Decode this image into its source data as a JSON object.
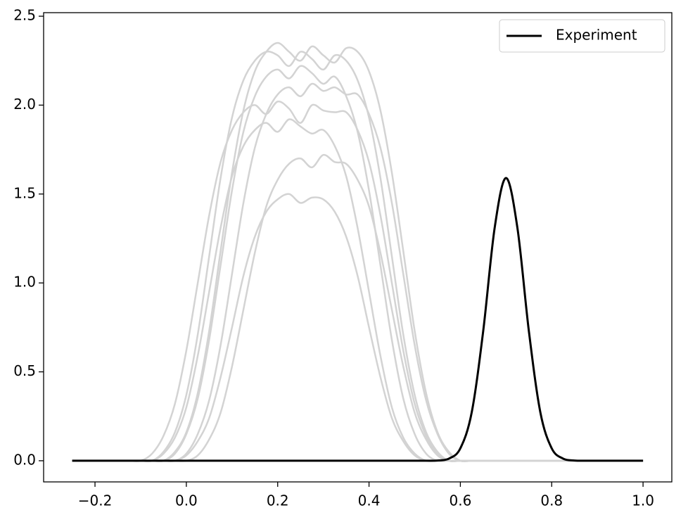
{
  "chart_data": {
    "type": "line",
    "x": [
      -0.25,
      -0.225,
      -0.2,
      -0.175,
      -0.15,
      -0.125,
      -0.1,
      -0.075,
      -0.05,
      -0.025,
      0,
      0.025,
      0.05,
      0.075,
      0.1,
      0.125,
      0.15,
      0.175,
      0.2,
      0.225,
      0.25,
      0.275,
      0.3,
      0.325,
      0.35,
      0.375,
      0.4,
      0.425,
      0.45,
      0.475,
      0.5,
      0.525,
      0.55,
      0.575,
      0.6,
      0.625,
      0.65,
      0.675,
      0.7,
      0.725,
      0.75,
      0.775,
      0.8,
      0.825,
      0.85,
      0.875,
      0.9,
      0.925,
      0.95,
      0.975,
      1.0
    ],
    "series": [
      {
        "color": "#d3d3d3",
        "values": [
          0,
          0,
          0,
          0,
          0,
          0,
          0,
          0,
          0.05,
          0.16,
          0.37,
          0.71,
          1.15,
          1.59,
          1.93,
          2.14,
          2.25,
          2.3,
          2.28,
          2.22,
          2.3,
          2.26,
          2.2,
          2.28,
          2.25,
          2.14,
          1.93,
          1.59,
          1.15,
          0.71,
          0.37,
          0.16,
          0.05,
          0,
          0,
          0,
          0,
          0,
          0,
          0,
          0,
          0,
          0,
          0,
          0,
          0,
          0,
          0,
          0,
          0,
          0
        ]
      },
      {
        "color": "#d3d3d3",
        "values": [
          0,
          0,
          0,
          0,
          0,
          0,
          0,
          0,
          0,
          0.04,
          0.15,
          0.35,
          0.68,
          1.1,
          1.52,
          1.85,
          2.05,
          2.16,
          2.2,
          2.15,
          2.22,
          2.18,
          2.12,
          2.16,
          2.05,
          1.85,
          1.52,
          1.1,
          0.68,
          0.35,
          0.15,
          0.04,
          0,
          0,
          0,
          0,
          0,
          0,
          0,
          0,
          0,
          0,
          0,
          0,
          0,
          0,
          0,
          0,
          0,
          0,
          0
        ]
      },
      {
        "color": "#d3d3d3",
        "values": [
          0,
          0,
          0,
          0,
          0,
          0,
          0,
          0.04,
          0.14,
          0.32,
          0.62,
          1.0,
          1.38,
          1.68,
          1.86,
          1.96,
          2.0,
          1.95,
          2.02,
          1.98,
          1.9,
          2.0,
          1.97,
          1.96,
          1.96,
          1.86,
          1.68,
          1.38,
          1.0,
          0.62,
          0.32,
          0.14,
          0.04,
          0,
          0,
          0,
          0,
          0,
          0,
          0,
          0,
          0,
          0,
          0,
          0,
          0,
          0,
          0,
          0,
          0,
          0
        ]
      },
      {
        "color": "#d3d3d3",
        "values": [
          0,
          0,
          0,
          0,
          0,
          0,
          0,
          0,
          0,
          0,
          0.04,
          0.15,
          0.34,
          0.65,
          1.05,
          1.45,
          1.76,
          1.95,
          2.06,
          2.1,
          2.05,
          2.12,
          2.08,
          2.1,
          2.06,
          2.06,
          1.95,
          1.76,
          1.45,
          1.05,
          0.65,
          0.34,
          0.15,
          0.04,
          0,
          0,
          0,
          0,
          0,
          0,
          0,
          0,
          0,
          0,
          0,
          0,
          0,
          0,
          0,
          0,
          0
        ]
      },
      {
        "color": "#d3d3d3",
        "values": [
          0,
          0,
          0,
          0,
          0,
          0,
          0,
          0,
          0.04,
          0.13,
          0.3,
          0.59,
          0.95,
          1.31,
          1.6,
          1.77,
          1.86,
          1.9,
          1.85,
          1.92,
          1.88,
          1.84,
          1.86,
          1.77,
          1.6,
          1.31,
          0.95,
          0.59,
          0.3,
          0.13,
          0.04,
          0,
          0,
          0,
          0,
          0,
          0,
          0,
          0,
          0,
          0,
          0,
          0,
          0,
          0,
          0,
          0,
          0,
          0,
          0,
          0
        ]
      },
      {
        "color": "#d3d3d3",
        "values": [
          0,
          0,
          0,
          0,
          0,
          0,
          0,
          0,
          0,
          0,
          0,
          0.03,
          0.12,
          0.27,
          0.53,
          0.85,
          1.17,
          1.43,
          1.58,
          1.67,
          1.7,
          1.65,
          1.72,
          1.68,
          1.67,
          1.58,
          1.43,
          1.17,
          0.85,
          0.53,
          0.27,
          0.12,
          0.03,
          0,
          0,
          0,
          0,
          0,
          0,
          0,
          0,
          0,
          0,
          0,
          0,
          0,
          0,
          0,
          0,
          0,
          0
        ]
      },
      {
        "color": "#d3d3d3",
        "values": [
          0,
          0,
          0,
          0,
          0,
          0,
          0,
          0,
          0,
          0.05,
          0.16,
          0.38,
          0.73,
          1.18,
          1.62,
          1.97,
          2.19,
          2.3,
          2.35,
          2.3,
          2.25,
          2.33,
          2.28,
          2.24,
          2.32,
          2.3,
          2.19,
          1.97,
          1.62,
          1.18,
          0.73,
          0.38,
          0.16,
          0.05,
          0,
          0,
          0,
          0,
          0,
          0,
          0,
          0,
          0,
          0,
          0,
          0,
          0,
          0,
          0,
          0,
          0
        ]
      },
      {
        "color": "#d3d3d3",
        "values": [
          0,
          0,
          0,
          0,
          0,
          0,
          0,
          0,
          0,
          0,
          0.03,
          0.11,
          0.24,
          0.47,
          0.75,
          1.04,
          1.26,
          1.4,
          1.47,
          1.5,
          1.45,
          1.48,
          1.47,
          1.4,
          1.26,
          1.04,
          0.75,
          0.47,
          0.24,
          0.11,
          0.03,
          0,
          0,
          0,
          0,
          0,
          0,
          0,
          0,
          0,
          0,
          0,
          0,
          0,
          0,
          0,
          0,
          0,
          0,
          0,
          0
        ]
      },
      {
        "name": "Experiment",
        "color": "#000000",
        "values": [
          0,
          0,
          0,
          0,
          0,
          0,
          0,
          0,
          0,
          0,
          0,
          0,
          0,
          0,
          0,
          0,
          0,
          0,
          0,
          0,
          0,
          0,
          0,
          0,
          0,
          0,
          0,
          0,
          0,
          0,
          0,
          0.0001,
          0.0014,
          0.012,
          0.07,
          0.274,
          0.729,
          1.308,
          1.59,
          1.308,
          0.729,
          0.274,
          0.07,
          0.012,
          0.0014,
          0.0001,
          0,
          0,
          0,
          0,
          0
        ]
      }
    ],
    "xlim": [
      -0.3125,
      1.063
    ],
    "ylim": [
      -0.119,
      2.52
    ],
    "xticks": [
      {
        "value": -0.2,
        "label": "−0.2"
      },
      {
        "value": 0,
        "label": "0.0"
      },
      {
        "value": 0.2,
        "label": "0.2"
      },
      {
        "value": 0.4,
        "label": "0.4"
      },
      {
        "value": 0.6,
        "label": "0.6"
      },
      {
        "value": 0.8,
        "label": "0.8"
      },
      {
        "value": 1.0,
        "label": "1.0"
      }
    ],
    "yticks": [
      {
        "value": 0,
        "label": "0.0"
      },
      {
        "value": 0.5,
        "label": "0.5"
      },
      {
        "value": 1.0,
        "label": "1.0"
      },
      {
        "value": 1.5,
        "label": "1.5"
      },
      {
        "value": 2.0,
        "label": "2.0"
      },
      {
        "value": 2.5,
        "label": "2.5"
      }
    ],
    "legend": "upper right",
    "grid": false
  }
}
